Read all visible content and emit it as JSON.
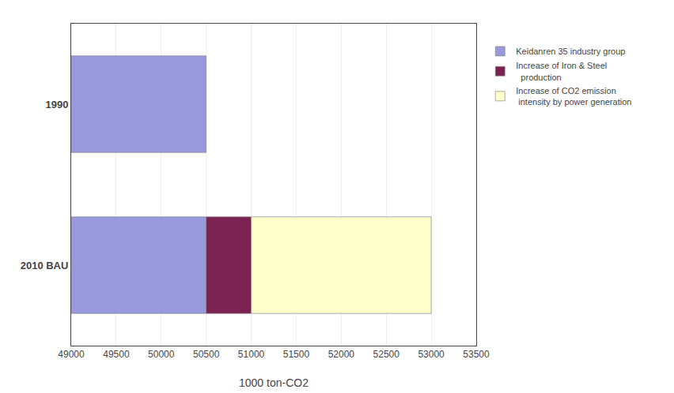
{
  "chart_data": {
    "type": "bar",
    "orientation": "horizontal",
    "categories": [
      "2010 BAU",
      "1990"
    ],
    "series": [
      {
        "name": "Keidanren 35 industry group",
        "color": "#9999dd",
        "values": [
          [
            49000,
            50500
          ],
          [
            49000,
            50500
          ]
        ]
      },
      {
        "name": "Increase of Iron & Steel\n  production",
        "color": "#7b2252",
        "values": [
          [
            50500,
            51000
          ],
          null
        ]
      },
      {
        "name": "Increase of CO2 emission\n intensity by power generation",
        "color": "#ffffcc",
        "values": [
          [
            51000,
            53000
          ],
          null
        ]
      }
    ],
    "xlabel": "1000 ton-CO2",
    "xlim": [
      49000,
      53500
    ],
    "xticks": [
      49000,
      49500,
      50000,
      50500,
      51000,
      51500,
      52000,
      52500,
      53000,
      53500
    ],
    "grid": true,
    "legend": "right"
  }
}
